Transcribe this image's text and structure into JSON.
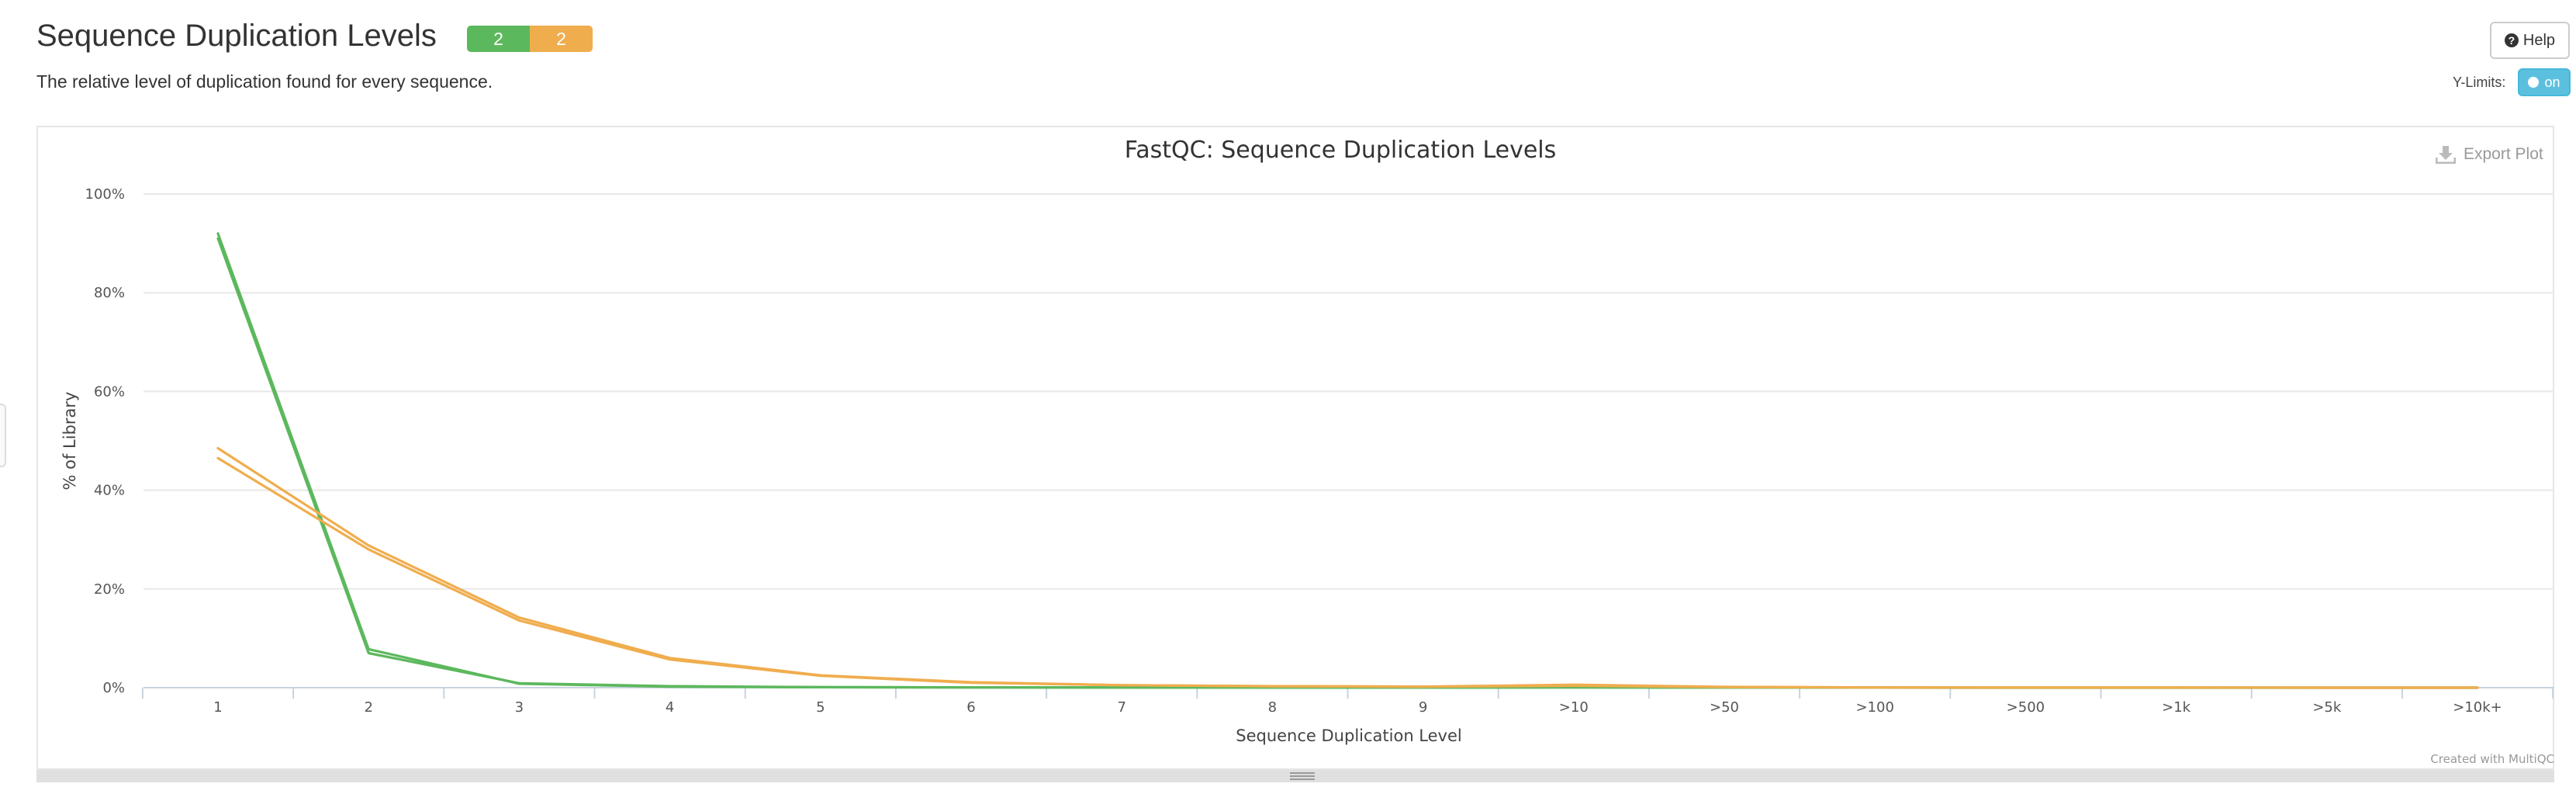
{
  "header": {
    "title": "Sequence Duplication Levels",
    "subtitle": "The relative level of duplication found for every sequence.",
    "badges": [
      {
        "label": "2",
        "color": "#5cb85c"
      },
      {
        "label": "2",
        "color": "#f0ad4e"
      }
    ]
  },
  "controls": {
    "help_label": "Help",
    "ylimits_label": "Y-Limits:",
    "ylimits_toggle": "on",
    "export_label": "Export Plot"
  },
  "icons": {
    "help": "question-circle-icon",
    "export": "download-icon"
  },
  "chart_data": {
    "type": "line",
    "title": "FastQC: Sequence Duplication Levels",
    "xlabel": "Sequence Duplication Level",
    "ylabel": "% of Library",
    "categories": [
      "1",
      "2",
      "3",
      "4",
      "5",
      "6",
      "7",
      "8",
      "9",
      ">10",
      ">50",
      ">100",
      ">500",
      ">1k",
      ">5k",
      ">10k+"
    ],
    "yticks": [
      "0%",
      "20%",
      "40%",
      "60%",
      "80%",
      "100%"
    ],
    "ylim": [
      0,
      100
    ],
    "grid": true,
    "credit": "Created with MultiQC",
    "series": [
      {
        "color": "#5cb85c",
        "values": [
          92.0,
          7.8,
          0.8,
          0.2,
          0.1,
          0.05,
          0.03,
          0.02,
          0.02,
          0.05,
          0.02,
          0.01,
          0.0,
          0.0,
          0.0,
          0.0
        ]
      },
      {
        "color": "#5cb85c",
        "values": [
          91.0,
          7.0,
          0.9,
          0.3,
          0.1,
          0.05,
          0.03,
          0.02,
          0.02,
          0.05,
          0.02,
          0.01,
          0.0,
          0.0,
          0.0,
          0.0
        ]
      },
      {
        "color": "#f0ad4e",
        "values": [
          48.5,
          28.8,
          14.2,
          6.0,
          2.5,
          1.1,
          0.5,
          0.3,
          0.2,
          0.6,
          0.15,
          0.05,
          0.02,
          0.01,
          0.0,
          0.0
        ]
      },
      {
        "color": "#f0ad4e",
        "values": [
          46.5,
          28.0,
          13.6,
          5.7,
          2.4,
          1.0,
          0.5,
          0.3,
          0.2,
          0.4,
          0.12,
          0.04,
          0.02,
          0.01,
          0.0,
          0.0
        ]
      }
    ]
  }
}
